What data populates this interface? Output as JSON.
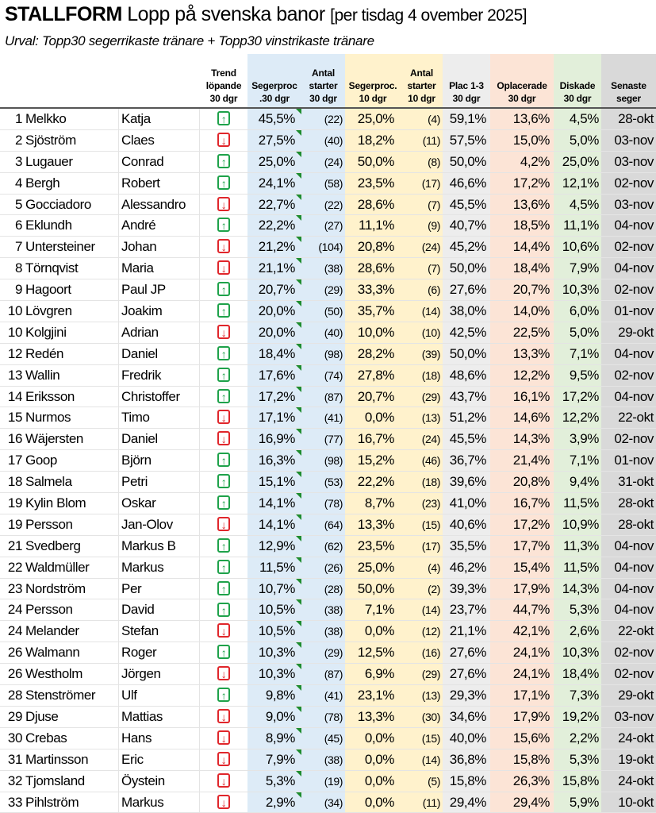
{
  "title": {
    "brand": "STALLFORM",
    "main": "Lopp på svenska banor",
    "bracket": "[per tisdag 4 ovember 2025]"
  },
  "subtitle": "Urval: Topp30 segerrikaste tränare + Topp30 vinstrikaste tränare",
  "headers": [
    "Trend\nlöpande\n30 dgr",
    "Segerproc\n.30 dgr",
    "Antal\nstarter\n30 dgr",
    "Segerproc.\n10 dgr",
    "Antal\nstarter\n10 dgr",
    "Plac 1-3\n30 dgr",
    "Oplacerade\n30 dgr",
    "Diskade\n30 dgr",
    "Senaste\nseger"
  ],
  "colors": {
    "up": "#1ea24a",
    "down": "#e0262b",
    "seger30": "#ddebf7",
    "seger10": "#fff2cc",
    "plac": "#ededed",
    "oplac": "#fce4d6",
    "disk": "#e2efda",
    "senaste": "#d9d9d9"
  },
  "rows": [
    [
      "1",
      "Melkko",
      "Katja",
      "up",
      "45,5%",
      "(22)",
      "25,0%",
      "(4)",
      "59,1%",
      "13,6%",
      "4,5%",
      "28-okt"
    ],
    [
      "2",
      "Sjöström",
      "Claes",
      "down",
      "27,5%",
      "(40)",
      "18,2%",
      "(11)",
      "57,5%",
      "15,0%",
      "5,0%",
      "03-nov"
    ],
    [
      "3",
      "Lugauer",
      "Conrad",
      "up",
      "25,0%",
      "(24)",
      "50,0%",
      "(8)",
      "50,0%",
      "4,2%",
      "25,0%",
      "03-nov"
    ],
    [
      "4",
      "Bergh",
      "Robert",
      "up",
      "24,1%",
      "(58)",
      "23,5%",
      "(17)",
      "46,6%",
      "17,2%",
      "12,1%",
      "02-nov"
    ],
    [
      "5",
      "Gocciadoro",
      "Alessandro",
      "down",
      "22,7%",
      "(22)",
      "28,6%",
      "(7)",
      "45,5%",
      "13,6%",
      "4,5%",
      "03-nov"
    ],
    [
      "6",
      "Eklundh",
      "André",
      "up",
      "22,2%",
      "(27)",
      "11,1%",
      "(9)",
      "40,7%",
      "18,5%",
      "11,1%",
      "04-nov"
    ],
    [
      "7",
      "Untersteiner",
      "Johan",
      "down",
      "21,2%",
      "(104)",
      "20,8%",
      "(24)",
      "45,2%",
      "14,4%",
      "10,6%",
      "02-nov"
    ],
    [
      "8",
      "Törnqvist",
      "Maria",
      "down",
      "21,1%",
      "(38)",
      "28,6%",
      "(7)",
      "50,0%",
      "18,4%",
      "7,9%",
      "04-nov"
    ],
    [
      "9",
      "Hagoort",
      "Paul JP",
      "up",
      "20,7%",
      "(29)",
      "33,3%",
      "(6)",
      "27,6%",
      "20,7%",
      "10,3%",
      "02-nov"
    ],
    [
      "10",
      "Lövgren",
      "Joakim",
      "up",
      "20,0%",
      "(50)",
      "35,7%",
      "(14)",
      "38,0%",
      "14,0%",
      "6,0%",
      "01-nov"
    ],
    [
      "10",
      "Kolgjini",
      "Adrian",
      "down",
      "20,0%",
      "(40)",
      "10,0%",
      "(10)",
      "42,5%",
      "22,5%",
      "5,0%",
      "29-okt"
    ],
    [
      "12",
      "Redén",
      "Daniel",
      "up",
      "18,4%",
      "(98)",
      "28,2%",
      "(39)",
      "50,0%",
      "13,3%",
      "7,1%",
      "04-nov"
    ],
    [
      "13",
      "Wallin",
      "Fredrik",
      "up",
      "17,6%",
      "(74)",
      "27,8%",
      "(18)",
      "48,6%",
      "12,2%",
      "9,5%",
      "02-nov"
    ],
    [
      "14",
      "Eriksson",
      "Christoffer",
      "up",
      "17,2%",
      "(87)",
      "20,7%",
      "(29)",
      "43,7%",
      "16,1%",
      "17,2%",
      "04-nov"
    ],
    [
      "15",
      "Nurmos",
      "Timo",
      "down",
      "17,1%",
      "(41)",
      "0,0%",
      "(13)",
      "51,2%",
      "14,6%",
      "12,2%",
      "22-okt"
    ],
    [
      "16",
      "Wäjersten",
      "Daniel",
      "down",
      "16,9%",
      "(77)",
      "16,7%",
      "(24)",
      "45,5%",
      "14,3%",
      "3,9%",
      "02-nov"
    ],
    [
      "17",
      "Goop",
      "Björn",
      "up",
      "16,3%",
      "(98)",
      "15,2%",
      "(46)",
      "36,7%",
      "21,4%",
      "7,1%",
      "01-nov"
    ],
    [
      "18",
      "Salmela",
      "Petri",
      "up",
      "15,1%",
      "(53)",
      "22,2%",
      "(18)",
      "39,6%",
      "20,8%",
      "9,4%",
      "31-okt"
    ],
    [
      "19",
      "Kylin Blom",
      "Oskar",
      "up",
      "14,1%",
      "(78)",
      "8,7%",
      "(23)",
      "41,0%",
      "16,7%",
      "11,5%",
      "28-okt"
    ],
    [
      "19",
      "Persson",
      "Jan-Olov",
      "down",
      "14,1%",
      "(64)",
      "13,3%",
      "(15)",
      "40,6%",
      "17,2%",
      "10,9%",
      "28-okt"
    ],
    [
      "21",
      "Svedberg",
      "Markus B",
      "up",
      "12,9%",
      "(62)",
      "23,5%",
      "(17)",
      "35,5%",
      "17,7%",
      "11,3%",
      "04-nov"
    ],
    [
      "22",
      "Waldmüller",
      "Markus",
      "up",
      "11,5%",
      "(26)",
      "25,0%",
      "(4)",
      "46,2%",
      "15,4%",
      "11,5%",
      "04-nov"
    ],
    [
      "23",
      "Nordström",
      "Per",
      "up",
      "10,7%",
      "(28)",
      "50,0%",
      "(2)",
      "39,3%",
      "17,9%",
      "14,3%",
      "04-nov"
    ],
    [
      "24",
      "Persson",
      "David",
      "up",
      "10,5%",
      "(38)",
      "7,1%",
      "(14)",
      "23,7%",
      "44,7%",
      "5,3%",
      "04-nov"
    ],
    [
      "24",
      "Melander",
      "Stefan",
      "down",
      "10,5%",
      "(38)",
      "0,0%",
      "(12)",
      "21,1%",
      "42,1%",
      "2,6%",
      "22-okt"
    ],
    [
      "26",
      "Walmann",
      "Roger",
      "up",
      "10,3%",
      "(29)",
      "12,5%",
      "(16)",
      "27,6%",
      "24,1%",
      "10,3%",
      "02-nov"
    ],
    [
      "26",
      "Westholm",
      "Jörgen",
      "down",
      "10,3%",
      "(87)",
      "6,9%",
      "(29)",
      "27,6%",
      "24,1%",
      "18,4%",
      "02-nov"
    ],
    [
      "28",
      "Stenströmer",
      "Ulf",
      "up",
      "9,8%",
      "(41)",
      "23,1%",
      "(13)",
      "29,3%",
      "17,1%",
      "7,3%",
      "29-okt"
    ],
    [
      "29",
      "Djuse",
      "Mattias",
      "down",
      "9,0%",
      "(78)",
      "13,3%",
      "(30)",
      "34,6%",
      "17,9%",
      "19,2%",
      "03-nov"
    ],
    [
      "30",
      "Crebas",
      "Hans",
      "down",
      "8,9%",
      "(45)",
      "0,0%",
      "(15)",
      "40,0%",
      "15,6%",
      "2,2%",
      "24-okt"
    ],
    [
      "31",
      "Martinsson",
      "Eric",
      "down",
      "7,9%",
      "(38)",
      "0,0%",
      "(14)",
      "36,8%",
      "15,8%",
      "5,3%",
      "19-okt"
    ],
    [
      "32",
      "Tjomsland",
      "Öystein",
      "down",
      "5,3%",
      "(19)",
      "0,0%",
      "(5)",
      "15,8%",
      "26,3%",
      "15,8%",
      "24-okt"
    ],
    [
      "33",
      "Pihlström",
      "Markus",
      "down",
      "2,9%",
      "(34)",
      "0,0%",
      "(11)",
      "29,4%",
      "29,4%",
      "5,9%",
      "10-okt"
    ]
  ]
}
